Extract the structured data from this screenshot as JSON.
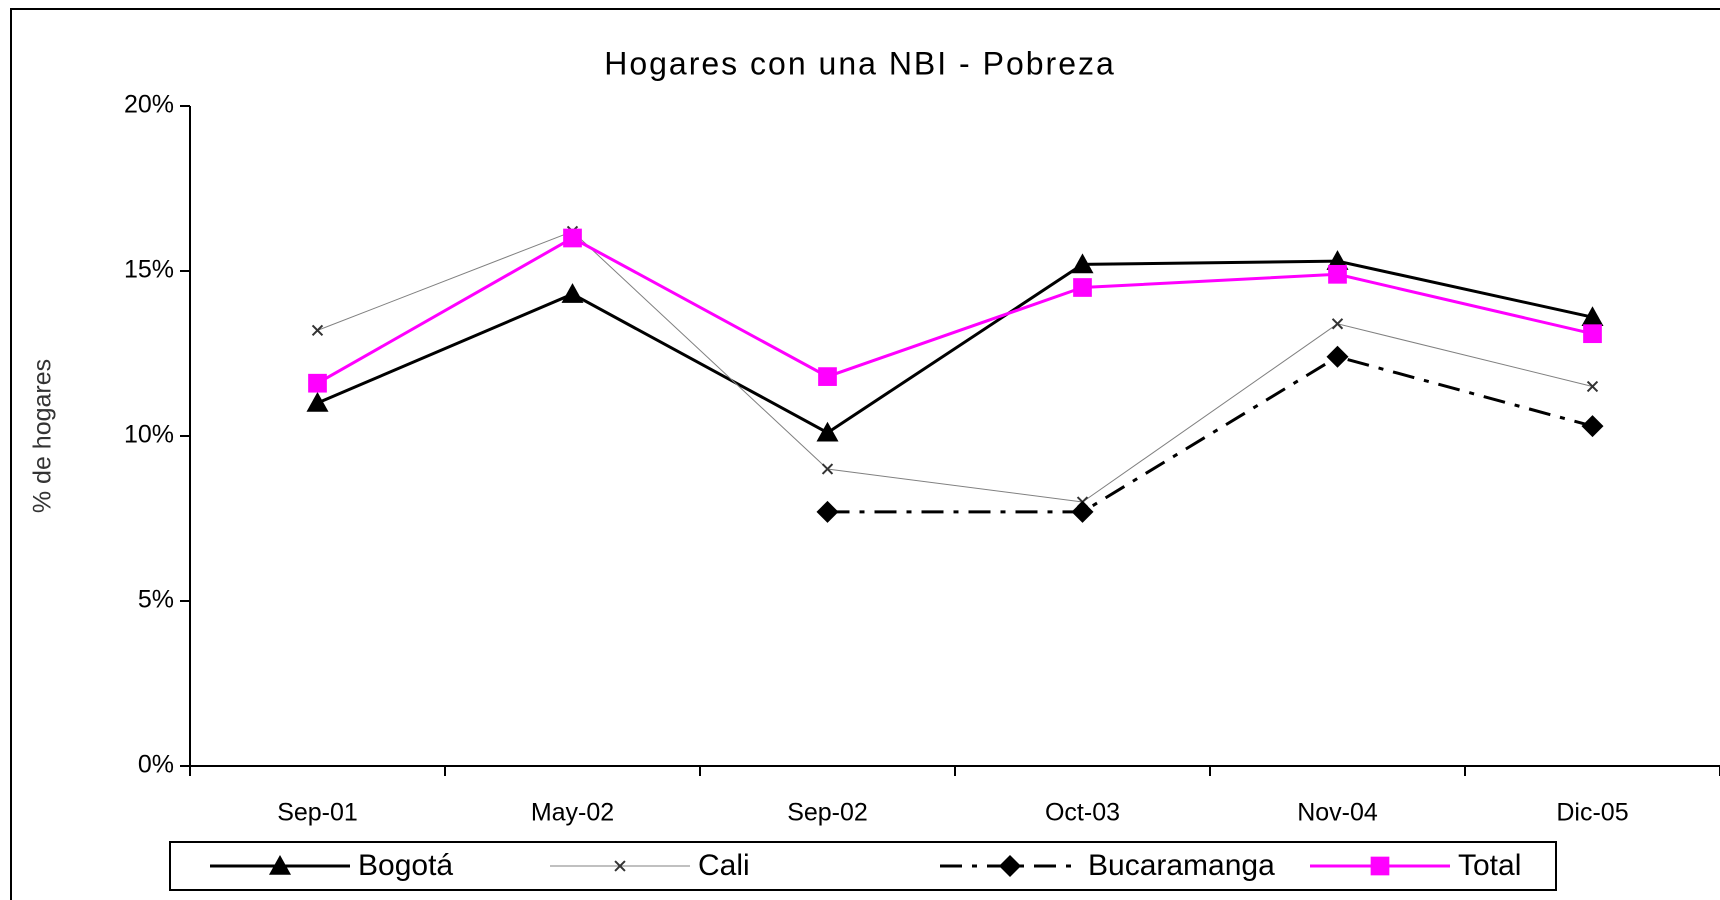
{
  "chart_data": {
    "type": "line",
    "title": "Hogares con una NBI - Pobreza",
    "y_label": "% de hogares",
    "categories": [
      "Sep-01",
      "May-02",
      "Sep-02",
      "Oct-03",
      "Nov-04",
      "Dic-05"
    ],
    "series": [
      {
        "name": "Bogotá",
        "color": "#000000",
        "marker": "triangle",
        "values": [
          11.0,
          14.3,
          10.1,
          15.2,
          15.3,
          13.6
        ]
      },
      {
        "name": "Cali",
        "color": "#808080",
        "marker": "x",
        "values": [
          13.2,
          16.2,
          9.0,
          8.0,
          13.4,
          11.5
        ]
      },
      {
        "name": "Bucaramanga",
        "color": "#000000",
        "marker": "diamond",
        "dash": "dash-dot",
        "values": [
          null,
          null,
          7.7,
          7.7,
          12.4,
          10.3
        ]
      },
      {
        "name": "Total",
        "color": "#ff00ff",
        "marker": "square",
        "values": [
          11.6,
          16.0,
          11.8,
          14.5,
          14.9,
          13.1
        ]
      }
    ],
    "ylim": [
      0,
      20
    ],
    "yticks": [
      {
        "value": 0,
        "label": "0%"
      },
      {
        "value": 5,
        "label": "5%"
      },
      {
        "value": 10,
        "label": "10%"
      },
      {
        "value": 15,
        "label": "15%"
      },
      {
        "value": 20,
        "label": "20%"
      }
    ],
    "legend": "bottom"
  }
}
